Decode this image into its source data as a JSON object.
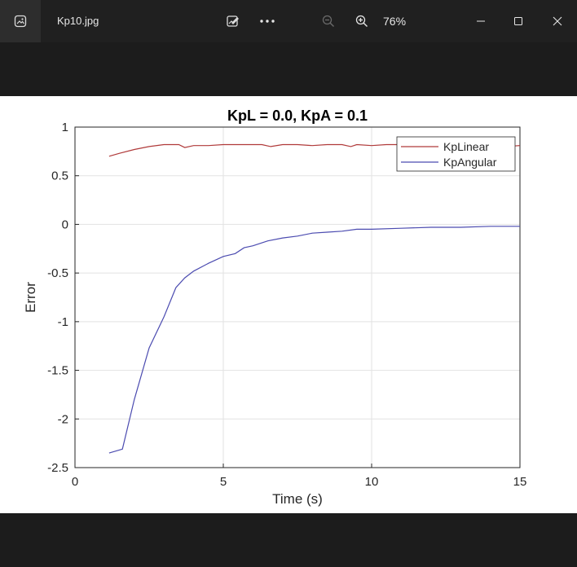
{
  "window": {
    "filename": "Kp10.jpg",
    "zoom": "76%"
  },
  "icons": {
    "app": "photos-app-icon",
    "edit": "edit-image-icon",
    "more": "more-options-icon",
    "zoom_out": "zoom-out-icon",
    "zoom_in": "zoom-in-icon",
    "minimize": "minimize-icon",
    "maximize": "maximize-icon",
    "close": "close-icon"
  },
  "chart_data": {
    "type": "line",
    "title": "KpL = 0.0, KpA = 0.1",
    "xlabel": "Time (s)",
    "ylabel": "Error",
    "xlim": [
      0,
      15
    ],
    "ylim": [
      -2.5,
      1
    ],
    "xticks": [
      "0",
      "5",
      "10",
      "15"
    ],
    "yticks": [
      "1",
      "0.5",
      "0",
      "-0.5",
      "-1",
      "-1.5",
      "-2",
      "-2.5"
    ],
    "grid": true,
    "legend_position": "top-right",
    "series": [
      {
        "name": "KpLinear",
        "color": "#b03a3a",
        "x": [
          1.15,
          1.5,
          2.0,
          2.5,
          3.0,
          3.5,
          3.7,
          4.0,
          4.5,
          5.0,
          5.5,
          6.0,
          6.3,
          6.6,
          7.0,
          7.5,
          8.0,
          8.5,
          9.0,
          9.3,
          9.5,
          10.0,
          10.5,
          11.0,
          11.5,
          12.0,
          12.5,
          13.0,
          13.5,
          14.0,
          14.5,
          15.0
        ],
        "y": [
          0.7,
          0.73,
          0.77,
          0.8,
          0.82,
          0.82,
          0.79,
          0.81,
          0.81,
          0.82,
          0.82,
          0.82,
          0.82,
          0.8,
          0.82,
          0.82,
          0.81,
          0.82,
          0.82,
          0.8,
          0.82,
          0.81,
          0.82,
          0.82,
          0.82,
          0.82,
          0.81,
          0.81,
          0.82,
          0.81,
          0.8,
          0.81
        ]
      },
      {
        "name": "KpAngular",
        "color": "#4b4bb0",
        "x": [
          1.15,
          1.6,
          2.0,
          2.5,
          3.0,
          3.4,
          3.7,
          4.0,
          4.5,
          5.0,
          5.4,
          5.7,
          6.0,
          6.5,
          7.0,
          7.5,
          8.0,
          8.5,
          9.0,
          9.5,
          10.0,
          11.0,
          12.0,
          13.0,
          14.0,
          15.0
        ],
        "y": [
          -2.35,
          -2.31,
          -1.8,
          -1.27,
          -0.95,
          -0.65,
          -0.55,
          -0.48,
          -0.4,
          -0.33,
          -0.3,
          -0.24,
          -0.22,
          -0.17,
          -0.14,
          -0.12,
          -0.09,
          -0.08,
          -0.07,
          -0.05,
          -0.05,
          -0.04,
          -0.03,
          -0.03,
          -0.02,
          -0.02
        ]
      }
    ]
  }
}
